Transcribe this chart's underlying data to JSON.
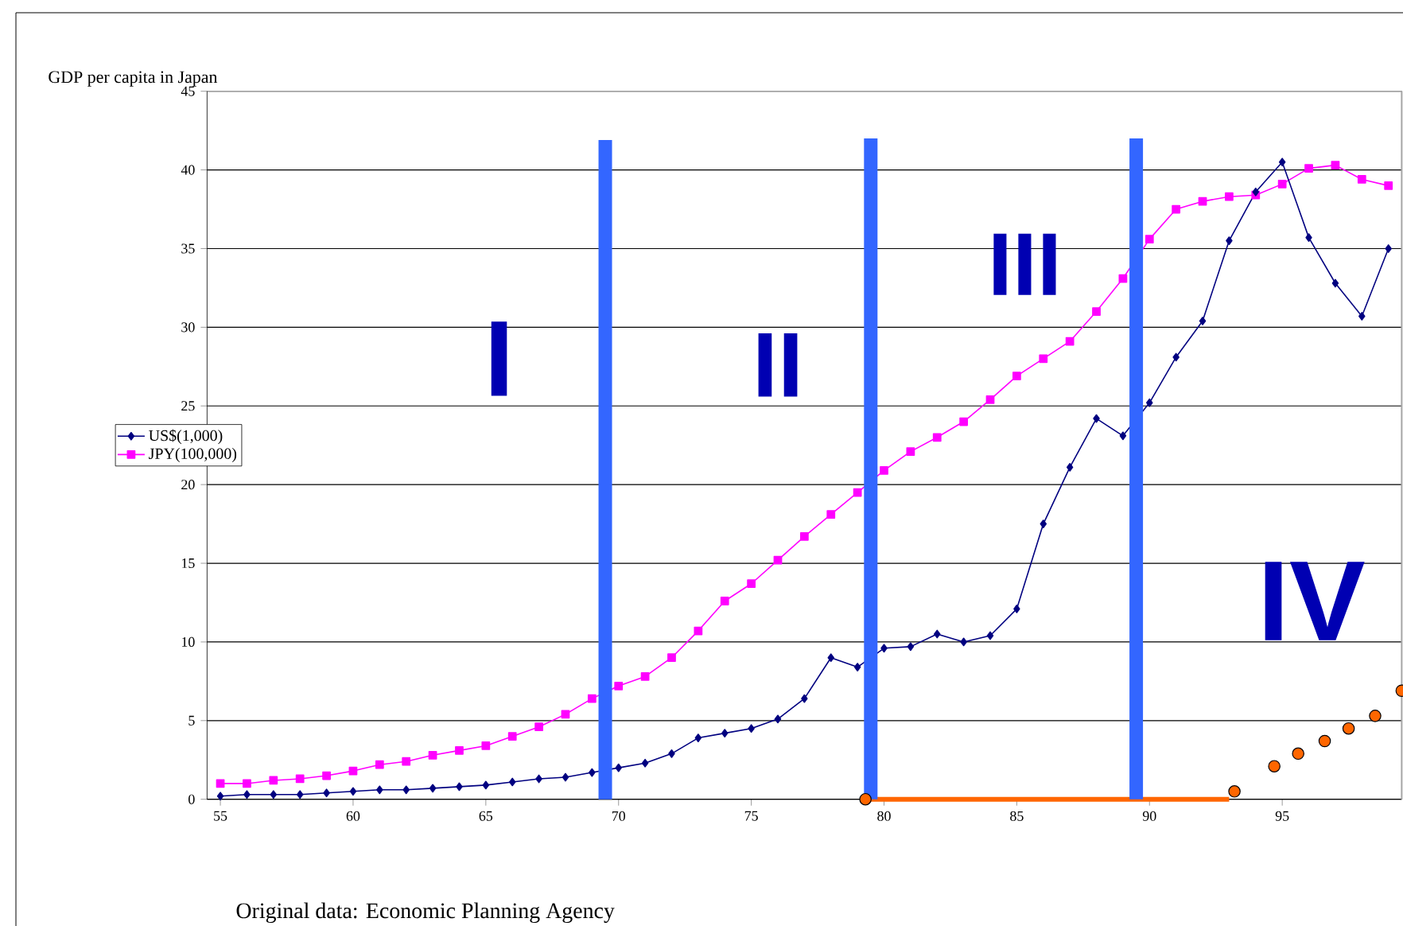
{
  "chart_data": {
    "type": "line",
    "title": "GDP per capita in Japan",
    "annotations": [
      "I",
      "II",
      "III",
      "IV",
      "Original data: Economic Planning Agency"
    ],
    "x": [
      55,
      56,
      57,
      58,
      59,
      60,
      61,
      62,
      63,
      64,
      65,
      66,
      67,
      68,
      69,
      70,
      71,
      72,
      73,
      74,
      75,
      76,
      77,
      78,
      79,
      80,
      81,
      82,
      83,
      84,
      85,
      86,
      87,
      88,
      89,
      90,
      91,
      92,
      93,
      94,
      95,
      96,
      97,
      98,
      99
    ],
    "series": [
      {
        "name": "US$(1,000)",
        "color": "#000080",
        "marker": "diamond",
        "values": [
          0.2,
          0.3,
          0.3,
          0.3,
          0.4,
          0.5,
          0.6,
          0.6,
          0.7,
          0.8,
          0.9,
          1.1,
          1.3,
          1.4,
          1.7,
          2.0,
          2.3,
          2.9,
          3.9,
          4.2,
          4.5,
          5.1,
          6.4,
          9.0,
          8.4,
          9.6,
          9.7,
          10.5,
          10.0,
          10.4,
          12.1,
          17.5,
          21.1,
          24.2,
          23.1,
          25.2,
          28.1,
          30.4,
          35.5,
          38.6,
          40.5,
          35.7,
          32.8,
          30.7,
          35.0
        ]
      },
      {
        "name": "JPY(100,000)",
        "color": "#ff00ff",
        "marker": "square",
        "values": [
          1.0,
          1.0,
          1.2,
          1.3,
          1.5,
          1.8,
          2.2,
          2.4,
          2.8,
          3.1,
          3.4,
          4.0,
          4.6,
          5.4,
          6.4,
          7.2,
          7.8,
          9.0,
          10.7,
          12.6,
          13.7,
          15.2,
          16.7,
          18.1,
          19.5,
          20.9,
          22.1,
          23.0,
          24.0,
          25.4,
          26.9,
          28.0,
          29.1,
          31.0,
          33.1,
          35.6,
          37.5,
          38.0,
          38.3,
          38.4,
          39.1,
          40.1,
          40.3,
          39.4,
          39.0
        ]
      },
      {
        "type": "line",
        "color": "#ff6600",
        "marker": "none",
        "x": [
          79.1,
          93.0
        ],
        "values": [
          0,
          0
        ]
      },
      {
        "type": "bar",
        "color": "#3366ff",
        "x": [
          69.5,
          79.5,
          89.5
        ],
        "values": [
          41.9,
          42,
          42
        ]
      },
      {
        "type": "scatter",
        "color": "#ff6600",
        "marker": "circle",
        "x": [
          79.3,
          93.2,
          94.7,
          95.6,
          96.6,
          97.5,
          98.5,
          99.5
        ],
        "values": [
          0,
          0.5,
          2.1,
          2.9,
          3.7,
          4.5,
          5.3,
          6.9
        ]
      }
    ],
    "xlim": [
      54.5,
      99.5
    ],
    "xticks": [
      55,
      60,
      65,
      70,
      75,
      80,
      85,
      90,
      95
    ],
    "ylim": [
      0,
      45
    ],
    "yticks": [
      0,
      5,
      10,
      15,
      20,
      25,
      30,
      35,
      40,
      45
    ],
    "grid": "y",
    "legend": "left",
    "line_style": "solid"
  }
}
